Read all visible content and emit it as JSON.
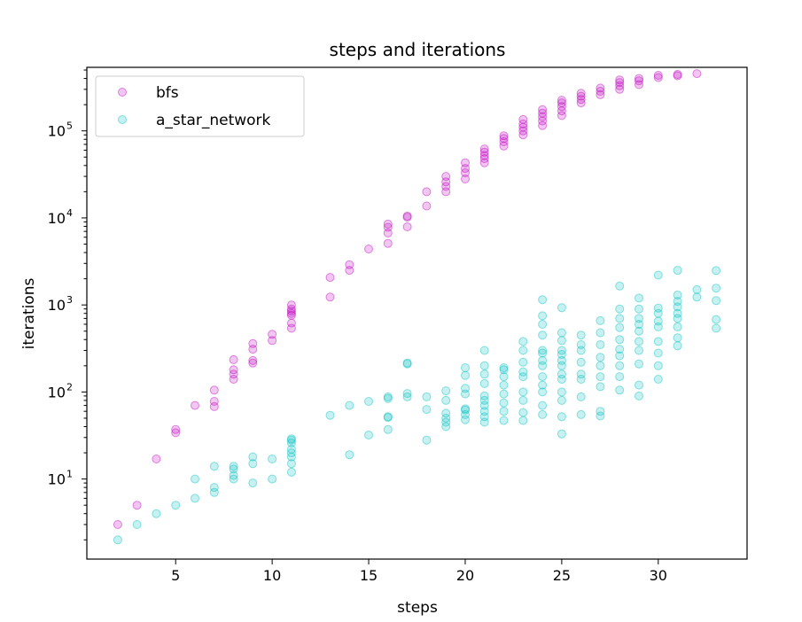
{
  "chart_data": {
    "type": "scatter",
    "title": "steps and iterations",
    "xlabel": "steps",
    "ylabel": "iterations",
    "xlim": [
      0.4,
      34.6
    ],
    "ylim_log10": [
      0.08,
      5.73
    ],
    "yscale": "log",
    "x_ticks": [
      5,
      10,
      15,
      20,
      25,
      30
    ],
    "y_ticks": [
      {
        "value": 10,
        "base": "10",
        "exp": "1"
      },
      {
        "value": 100,
        "base": "10",
        "exp": "2"
      },
      {
        "value": 1000,
        "base": "10",
        "exp": "3"
      },
      {
        "value": 10000,
        "base": "10",
        "exp": "4"
      },
      {
        "value": 100000,
        "base": "10",
        "exp": "5"
      }
    ],
    "legend_position": "top-left",
    "series": [
      {
        "name": "bfs",
        "color": "#bf00bf",
        "points": [
          [
            2,
            3
          ],
          [
            3,
            5
          ],
          [
            4,
            17
          ],
          [
            5,
            34
          ],
          [
            5,
            37
          ],
          [
            6,
            70
          ],
          [
            7,
            68
          ],
          [
            7,
            78
          ],
          [
            7,
            105
          ],
          [
            8,
            140
          ],
          [
            8,
            160
          ],
          [
            8,
            180
          ],
          [
            8,
            235
          ],
          [
            9,
            215
          ],
          [
            9,
            230
          ],
          [
            9,
            310
          ],
          [
            9,
            360
          ],
          [
            10,
            390
          ],
          [
            10,
            460
          ],
          [
            11,
            540
          ],
          [
            11,
            620
          ],
          [
            11,
            760
          ],
          [
            11,
            800
          ],
          [
            11,
            850
          ],
          [
            11,
            900
          ],
          [
            11,
            1000
          ],
          [
            13,
            1230
          ],
          [
            13,
            2070
          ],
          [
            14,
            2500
          ],
          [
            14,
            2900
          ],
          [
            15,
            4400
          ],
          [
            16,
            5100
          ],
          [
            16,
            6700
          ],
          [
            16,
            7800
          ],
          [
            16,
            8500
          ],
          [
            17,
            7900
          ],
          [
            17,
            10200
          ],
          [
            17,
            10500
          ],
          [
            18,
            13700
          ],
          [
            18,
            20000
          ],
          [
            19,
            20000
          ],
          [
            19,
            23000
          ],
          [
            19,
            26000
          ],
          [
            19,
            30000
          ],
          [
            20,
            28000
          ],
          [
            20,
            33000
          ],
          [
            20,
            37000
          ],
          [
            20,
            43000
          ],
          [
            21,
            43000
          ],
          [
            21,
            48000
          ],
          [
            21,
            52000
          ],
          [
            21,
            57000
          ],
          [
            21,
            62000
          ],
          [
            22,
            67000
          ],
          [
            22,
            75000
          ],
          [
            22,
            82000
          ],
          [
            22,
            88000
          ],
          [
            23,
            90000
          ],
          [
            23,
            100000
          ],
          [
            23,
            110000
          ],
          [
            23,
            120000
          ],
          [
            23,
            135000
          ],
          [
            24,
            115000
          ],
          [
            24,
            130000
          ],
          [
            24,
            145000
          ],
          [
            24,
            160000
          ],
          [
            24,
            175000
          ],
          [
            25,
            150000
          ],
          [
            25,
            170000
          ],
          [
            25,
            190000
          ],
          [
            25,
            210000
          ],
          [
            25,
            225000
          ],
          [
            26,
            210000
          ],
          [
            26,
            230000
          ],
          [
            26,
            250000
          ],
          [
            26,
            270000
          ],
          [
            27,
            260000
          ],
          [
            27,
            285000
          ],
          [
            27,
            310000
          ],
          [
            28,
            300000
          ],
          [
            28,
            330000
          ],
          [
            28,
            360000
          ],
          [
            28,
            385000
          ],
          [
            29,
            340000
          ],
          [
            29,
            375000
          ],
          [
            29,
            400000
          ],
          [
            30,
            410000
          ],
          [
            30,
            435000
          ],
          [
            31,
            430000
          ],
          [
            31,
            445000
          ],
          [
            32,
            455000
          ]
        ]
      },
      {
        "name": "a_star_network",
        "color": "#00bfbf",
        "points": [
          [
            2,
            2
          ],
          [
            3,
            3
          ],
          [
            4,
            4
          ],
          [
            5,
            5
          ],
          [
            6,
            6
          ],
          [
            6,
            10
          ],
          [
            7,
            7
          ],
          [
            7,
            8
          ],
          [
            7,
            14
          ],
          [
            8,
            10
          ],
          [
            8,
            11
          ],
          [
            8,
            13
          ],
          [
            8,
            14
          ],
          [
            9,
            9
          ],
          [
            9,
            15
          ],
          [
            9,
            18
          ],
          [
            10,
            10
          ],
          [
            10,
            17
          ],
          [
            11,
            12
          ],
          [
            11,
            15
          ],
          [
            11,
            18
          ],
          [
            11,
            20
          ],
          [
            11,
            22
          ],
          [
            11,
            26
          ],
          [
            11,
            28
          ],
          [
            11,
            29
          ],
          [
            13,
            54
          ],
          [
            14,
            19
          ],
          [
            14,
            70
          ],
          [
            15,
            32
          ],
          [
            15,
            78
          ],
          [
            16,
            37
          ],
          [
            16,
            51
          ],
          [
            16,
            52
          ],
          [
            16,
            84
          ],
          [
            16,
            88
          ],
          [
            17,
            88
          ],
          [
            17,
            96
          ],
          [
            17,
            210
          ],
          [
            17,
            215
          ],
          [
            18,
            28
          ],
          [
            18,
            63
          ],
          [
            18,
            88
          ],
          [
            19,
            40
          ],
          [
            19,
            45
          ],
          [
            19,
            50
          ],
          [
            19,
            57
          ],
          [
            19,
            80
          ],
          [
            19,
            103
          ],
          [
            20,
            48
          ],
          [
            20,
            55
          ],
          [
            20,
            62
          ],
          [
            20,
            64
          ],
          [
            20,
            95
          ],
          [
            20,
            110
          ],
          [
            20,
            155
          ],
          [
            20,
            190
          ],
          [
            21,
            45
          ],
          [
            21,
            52
          ],
          [
            21,
            60
          ],
          [
            21,
            70
          ],
          [
            21,
            80
          ],
          [
            21,
            90
          ],
          [
            21,
            125
          ],
          [
            21,
            160
          ],
          [
            21,
            200
          ],
          [
            21,
            300
          ],
          [
            22,
            47
          ],
          [
            22,
            60
          ],
          [
            22,
            75
          ],
          [
            22,
            95
          ],
          [
            22,
            120
          ],
          [
            22,
            150
          ],
          [
            22,
            180
          ],
          [
            22,
            190
          ],
          [
            23,
            47
          ],
          [
            23,
            58
          ],
          [
            23,
            80
          ],
          [
            23,
            100
          ],
          [
            23,
            150
          ],
          [
            23,
            170
          ],
          [
            23,
            220
          ],
          [
            23,
            300
          ],
          [
            23,
            380
          ],
          [
            24,
            55
          ],
          [
            24,
            70
          ],
          [
            24,
            100
          ],
          [
            24,
            120
          ],
          [
            24,
            150
          ],
          [
            24,
            200
          ],
          [
            24,
            230
          ],
          [
            24,
            280
          ],
          [
            24,
            300
          ],
          [
            24,
            450
          ],
          [
            24,
            600
          ],
          [
            24,
            750
          ],
          [
            24,
            1150
          ],
          [
            25,
            33
          ],
          [
            25,
            52
          ],
          [
            25,
            80
          ],
          [
            25,
            100
          ],
          [
            25,
            140
          ],
          [
            25,
            160
          ],
          [
            25,
            200
          ],
          [
            25,
            230
          ],
          [
            25,
            270
          ],
          [
            25,
            300
          ],
          [
            25,
            390
          ],
          [
            25,
            480
          ],
          [
            25,
            930
          ],
          [
            26,
            55
          ],
          [
            26,
            88
          ],
          [
            26,
            140
          ],
          [
            26,
            160
          ],
          [
            26,
            220
          ],
          [
            26,
            300
          ],
          [
            26,
            350
          ],
          [
            26,
            450
          ],
          [
            27,
            53
          ],
          [
            27,
            60
          ],
          [
            27,
            115
          ],
          [
            27,
            150
          ],
          [
            27,
            200
          ],
          [
            27,
            250
          ],
          [
            27,
            350
          ],
          [
            27,
            480
          ],
          [
            27,
            660
          ],
          [
            28,
            105
          ],
          [
            28,
            150
          ],
          [
            28,
            200
          ],
          [
            28,
            260
          ],
          [
            28,
            310
          ],
          [
            28,
            400
          ],
          [
            28,
            550
          ],
          [
            28,
            700
          ],
          [
            28,
            900
          ],
          [
            28,
            1650
          ],
          [
            29,
            90
          ],
          [
            29,
            120
          ],
          [
            29,
            210
          ],
          [
            29,
            300
          ],
          [
            29,
            380
          ],
          [
            29,
            500
          ],
          [
            29,
            600
          ],
          [
            29,
            700
          ],
          [
            29,
            900
          ],
          [
            29,
            1200
          ],
          [
            30,
            140
          ],
          [
            30,
            200
          ],
          [
            30,
            280
          ],
          [
            30,
            380
          ],
          [
            30,
            560
          ],
          [
            30,
            650
          ],
          [
            30,
            800
          ],
          [
            30,
            920
          ],
          [
            30,
            2200
          ],
          [
            31,
            340
          ],
          [
            31,
            420
          ],
          [
            31,
            560
          ],
          [
            31,
            700
          ],
          [
            31,
            800
          ],
          [
            31,
            950
          ],
          [
            31,
            1100
          ],
          [
            31,
            1300
          ],
          [
            31,
            2500
          ],
          [
            32,
            1230
          ],
          [
            32,
            1500
          ],
          [
            33,
            540
          ],
          [
            33,
            680
          ],
          [
            33,
            1120
          ],
          [
            33,
            1560
          ],
          [
            33,
            2480
          ]
        ]
      }
    ]
  }
}
